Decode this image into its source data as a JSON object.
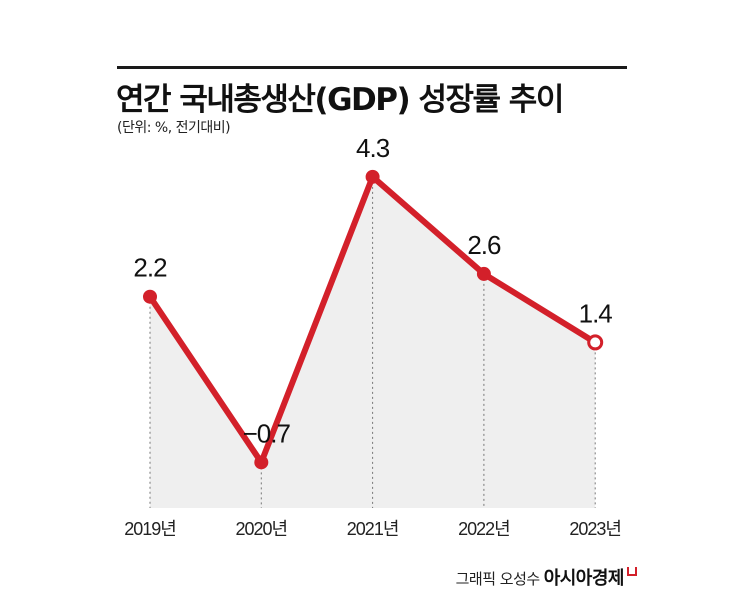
{
  "chart_data": {
    "type": "line",
    "title": "연간 국내총생산(GDP) 성장률 추이",
    "subtitle": "(단위: %, 전기대비)",
    "categories": [
      "2019년",
      "2020년",
      "2021년",
      "2022년",
      "2023년"
    ],
    "values": [
      2.2,
      -0.7,
      4.3,
      2.6,
      1.4
    ],
    "data_labels": [
      "2.2",
      "−0.7",
      "4.3",
      "2.6",
      "1.4"
    ],
    "ylim": [
      -1.5,
      5
    ],
    "grid": false,
    "line_color": "#d3202a",
    "area_color": "#efefef",
    "last_point_hollow": true
  },
  "credit": {
    "text": "그래픽 오성수",
    "brand": "아시아경제"
  }
}
